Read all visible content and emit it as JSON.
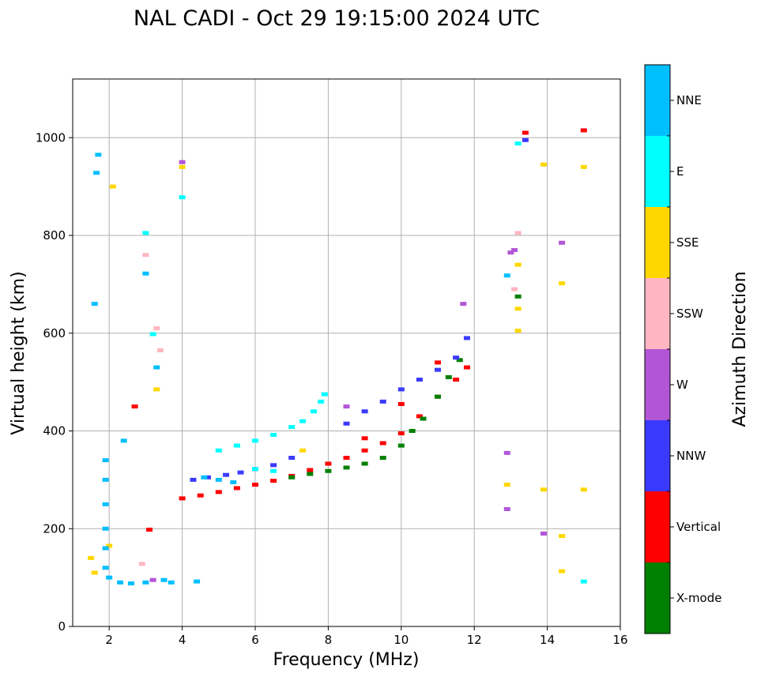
{
  "chart_data": {
    "type": "scatter",
    "title": "NAL CADI - Oct 29 19:15:00 2024 UTC",
    "xlabel": "Frequency (MHz)",
    "ylabel": "Virtual height (km)",
    "xlim": [
      1,
      16
    ],
    "ylim": [
      0,
      1120
    ],
    "xticks": [
      2,
      4,
      6,
      8,
      10,
      12,
      14,
      16
    ],
    "yticks": [
      0,
      200,
      400,
      600,
      800,
      1000
    ],
    "grid": true,
    "colorbar": {
      "label": "Azimuth Direction",
      "categories": [
        {
          "name": "X-mode",
          "color": "#008000"
        },
        {
          "name": "Vertical",
          "color": "#ff0000"
        },
        {
          "name": "NNW",
          "color": "#3a3aff"
        },
        {
          "name": "W",
          "color": "#b256d6"
        },
        {
          "name": "SSW",
          "color": "#ffb6c1"
        },
        {
          "name": "SSE",
          "color": "#ffd700"
        },
        {
          "name": "E",
          "color": "#00ffff"
        },
        {
          "name": "NNE",
          "color": "#00bfff"
        }
      ]
    },
    "series": [
      {
        "name": "Vertical",
        "color": "#ff0000",
        "points": [
          [
            4.0,
            262
          ],
          [
            4.5,
            268
          ],
          [
            5.0,
            275
          ],
          [
            5.5,
            283
          ],
          [
            6.0,
            290
          ],
          [
            6.5,
            298
          ],
          [
            7.0,
            308
          ],
          [
            7.5,
            320
          ],
          [
            8.0,
            333
          ],
          [
            8.5,
            345
          ],
          [
            9.0,
            360
          ],
          [
            9.5,
            375
          ],
          [
            10.0,
            395
          ],
          [
            10.5,
            430
          ],
          [
            11.0,
            470
          ],
          [
            11.5,
            505
          ],
          [
            11.8,
            530
          ],
          [
            9.0,
            385
          ],
          [
            10.0,
            455
          ],
          [
            11.0,
            540
          ],
          [
            13.4,
            1010
          ],
          [
            15.0,
            1015
          ],
          [
            2.7,
            450
          ],
          [
            3.1,
            198
          ]
        ]
      },
      {
        "name": "X-mode",
        "color": "#008000",
        "points": [
          [
            7.0,
            305
          ],
          [
            7.5,
            312
          ],
          [
            8.0,
            318
          ],
          [
            8.5,
            325
          ],
          [
            9.0,
            333
          ],
          [
            9.5,
            345
          ],
          [
            10.0,
            370
          ],
          [
            10.3,
            400
          ],
          [
            10.6,
            425
          ],
          [
            11.0,
            470
          ],
          [
            11.3,
            510
          ],
          [
            11.6,
            545
          ],
          [
            13.2,
            675
          ]
        ]
      },
      {
        "name": "NNW",
        "color": "#3a3aff",
        "points": [
          [
            4.3,
            300
          ],
          [
            4.7,
            305
          ],
          [
            5.2,
            310
          ],
          [
            5.6,
            315
          ],
          [
            6.0,
            322
          ],
          [
            6.5,
            330
          ],
          [
            7.0,
            345
          ],
          [
            8.5,
            415
          ],
          [
            9.0,
            440
          ],
          [
            9.5,
            460
          ],
          [
            10.0,
            485
          ],
          [
            10.5,
            505
          ],
          [
            11.0,
            525
          ],
          [
            11.5,
            550
          ],
          [
            11.8,
            590
          ],
          [
            13.4,
            995
          ]
        ]
      },
      {
        "name": "W",
        "color": "#b256d6",
        "points": [
          [
            3.2,
            95
          ],
          [
            4.0,
            950
          ],
          [
            8.5,
            450
          ],
          [
            11.7,
            660
          ],
          [
            12.9,
            355
          ],
          [
            12.9,
            240
          ],
          [
            13.0,
            765
          ],
          [
            13.1,
            770
          ],
          [
            13.9,
            190
          ],
          [
            14.4,
            785
          ]
        ]
      },
      {
        "name": "SSW",
        "color": "#ffb6c1",
        "points": [
          [
            3.0,
            760
          ],
          [
            3.3,
            610
          ],
          [
            3.4,
            565
          ],
          [
            2.9,
            128
          ],
          [
            13.2,
            805
          ],
          [
            13.1,
            690
          ]
        ]
      },
      {
        "name": "SSE",
        "color": "#ffd700",
        "points": [
          [
            1.5,
            140
          ],
          [
            1.6,
            110
          ],
          [
            2.0,
            165
          ],
          [
            2.1,
            900
          ],
          [
            3.3,
            485
          ],
          [
            4.0,
            940
          ],
          [
            7.3,
            360
          ],
          [
            13.2,
            605
          ],
          [
            13.2,
            650
          ],
          [
            13.2,
            740
          ],
          [
            12.9,
            290
          ],
          [
            13.9,
            280
          ],
          [
            13.9,
            945
          ],
          [
            14.4,
            702
          ],
          [
            14.4,
            185
          ],
          [
            14.4,
            113
          ],
          [
            15.0,
            940
          ],
          [
            15.0,
            280
          ]
        ]
      },
      {
        "name": "E",
        "color": "#00ffff",
        "points": [
          [
            5.0,
            360
          ],
          [
            5.5,
            370
          ],
          [
            6.0,
            380
          ],
          [
            6.5,
            392
          ],
          [
            7.0,
            408
          ],
          [
            7.3,
            420
          ],
          [
            7.6,
            440
          ],
          [
            7.8,
            460
          ],
          [
            7.9,
            475
          ],
          [
            6.0,
            322
          ],
          [
            6.5,
            318
          ],
          [
            3.0,
            805
          ],
          [
            4.0,
            878
          ],
          [
            3.2,
            598
          ],
          [
            13.2,
            988
          ],
          [
            15.0,
            92
          ]
        ]
      },
      {
        "name": "NNE",
        "color": "#00bfff",
        "points": [
          [
            1.7,
            965
          ],
          [
            1.65,
            928
          ],
          [
            1.6,
            660
          ],
          [
            1.9,
            340
          ],
          [
            1.9,
            300
          ],
          [
            1.9,
            250
          ],
          [
            1.9,
            200
          ],
          [
            1.9,
            160
          ],
          [
            1.9,
            120
          ],
          [
            2.0,
            100
          ],
          [
            2.3,
            90
          ],
          [
            2.6,
            88
          ],
          [
            3.0,
            90
          ],
          [
            3.5,
            95
          ],
          [
            3.7,
            90
          ],
          [
            4.4,
            92
          ],
          [
            4.6,
            305
          ],
          [
            5.0,
            300
          ],
          [
            5.4,
            295
          ],
          [
            3.3,
            530
          ],
          [
            3.0,
            722
          ],
          [
            12.9,
            718
          ],
          [
            2.4,
            380
          ]
        ]
      }
    ]
  }
}
